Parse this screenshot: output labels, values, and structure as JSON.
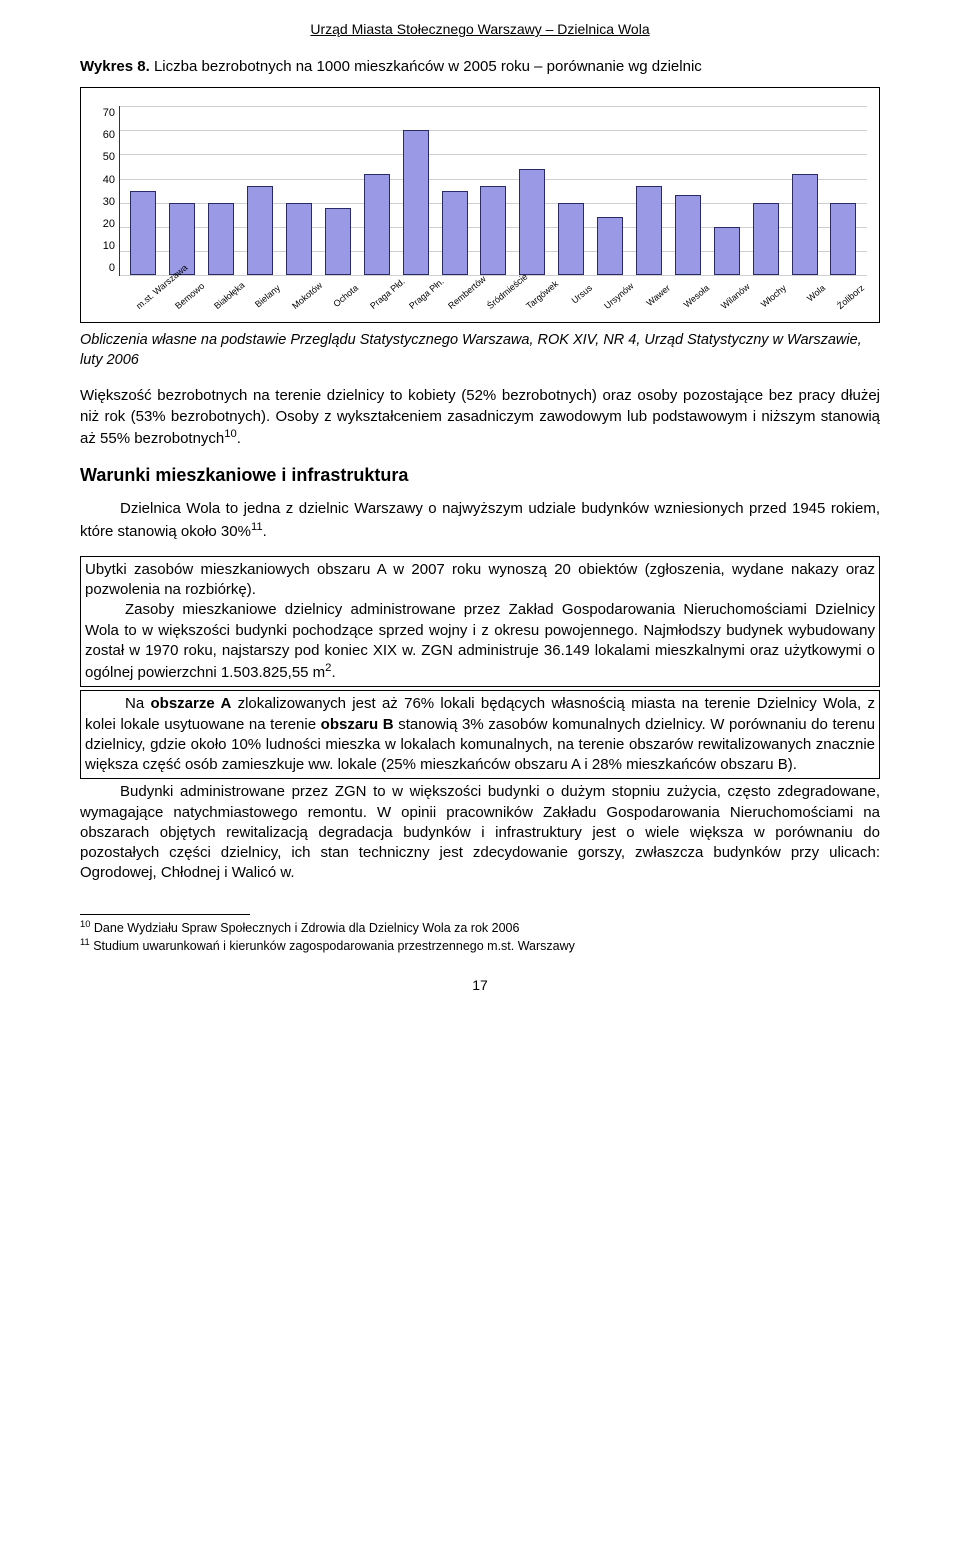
{
  "header": "Urząd Miasta Stołecznego Warszawy – Dzielnica Wola",
  "chart": {
    "caption_prefix": "Wykres 8.",
    "caption_rest": " Liczba bezrobotnych na 1000 mieszkańców w 2005 roku – porównanie wg dzielnic",
    "type": "bar",
    "ymin": 0,
    "ymax": 70,
    "ytick_step": 10,
    "yticks": [
      "70",
      "60",
      "50",
      "40",
      "30",
      "20",
      "10",
      "0"
    ],
    "grid_color": "#cfcfcf",
    "bar_fill": "#9999e6",
    "bar_border": "#2a2a66",
    "background": "#ffffff",
    "label_fontsize": 9,
    "categories": [
      "m.st. Warszawa",
      "Bemowo",
      "Białołęka",
      "Bielany",
      "Mokotów",
      "Ochota",
      "Praga Płd.",
      "Praga Płn.",
      "Rembertów",
      "Śródmieście",
      "Targówek",
      "Ursus",
      "Ursynów",
      "Wawer",
      "Wesoła",
      "Wilanów",
      "Włochy",
      "Wola",
      "Żoliborz"
    ],
    "values": [
      35,
      30,
      30,
      37,
      30,
      28,
      42,
      60,
      35,
      37,
      44,
      30,
      24,
      37,
      33,
      20,
      30,
      42,
      30
    ]
  },
  "chart_source_prefix": "Obliczenia własne na podstawie Przeglądu Statystycznego Warszawa, ROK  XIV, NR 4, Urząd Statystyczny w Warszawie, luty 2006",
  "para1a": "Większość bezrobotnych na terenie dzielnicy to kobiety (52% bezrobotnych) oraz osoby pozostające bez pracy dłużej niż rok (53% bezrobotnych). Osoby z wykształceniem zasadniczym zawodowym lub podstawowym i niższym stanowią aż 55% bezrobotnych",
  "sup10": "10",
  "para1b": ".",
  "section_heading": "Warunki mieszkaniowe i infrastruktura",
  "intro_a": "Dzielnica Wola to jedna z dzielnic Warszawy o najwyższym udziale budynków wzniesionych przed 1945 rokiem, które stanowią około 30%",
  "sup11": "11",
  "intro_b": ".",
  "box1_a": "Ubytki zasobów mieszkaniowych obszaru A w 2007 roku wynoszą 20 obiektów (zgłoszenia, wydane nakazy oraz pozwolenia na rozbiórkę).",
  "box1_b": "Zasoby mieszkaniowe dzielnicy administrowane przez Zakład Gospodarowania Nieruchomościami Dzielnicy Wola to w większości budynki pochodzące sprzed wojny i z okresu powojennego. Najmłodszy budynek wybudowany został w 1970 roku, najstarszy pod koniec XIX w.  ZGN administruje 36.149 lokalami mieszkalnymi oraz użytkowymi o ogólnej powierzchni 1.503.825,55 m",
  "box1_c": "2",
  "box1_d": ".",
  "box2_a": "Na ",
  "box2_b": "obszarze A",
  "box2_c": " zlokalizowanych jest aż 76% lokali będących własnością miasta na terenie Dzielnicy Wola, z kolei lokale usytuowane na terenie ",
  "box2_d": "obszaru B",
  "box2_e": " stanowią 3% zasobów komunalnych dzielnicy. W porównaniu do terenu dzielnicy, gdzie około 10% ludności mieszka w lokalach komunalnych, na terenie obszarów rewitalizowanych znacznie większa część osób zamieszkuje ww. lokale (25% mieszkańców obszaru A i 28% mieszkańców obszaru B).",
  "tail_a": "Budynki administrowane przez ZGN to w większości budynki o dużym stopniu zużycia, często zdegradowane, wymagające natychmiastowego remontu. W opinii pracowników Zakładu Gospodarowania Nieruchomościami na obszarach objętych rewitalizacją degradacja budynków i infrastruktury jest o wiele większa w porównaniu do pozostałych części dzielnicy, ich stan techniczny jest zdecydowanie gorszy, zwłaszcza budynków przy ulicach: Ogrodowej, Chłodnej i Walicó w.",
  "footnote10": " Dane Wydziału Spraw Społecznych i Zdrowia dla Dzielnicy Wola za rok 2006",
  "footnote11": " Studium uwarunkowań i kierunków zagospodarowania przestrzennego m.st. Warszawy",
  "page_number": "17"
}
